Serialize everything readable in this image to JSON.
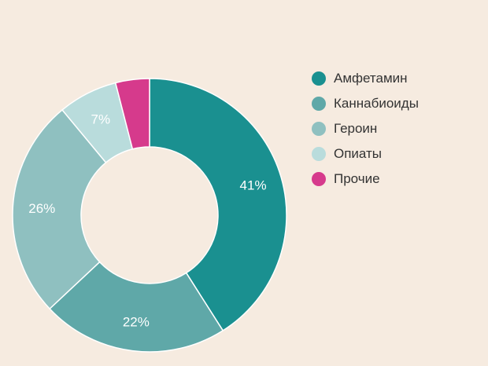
{
  "chart_data": {
    "type": "pie",
    "donut": true,
    "title": "",
    "legend_position": "right",
    "categories": [
      "Амфетамин",
      "Каннабиоиды",
      "Героин",
      "Опиаты",
      "Прочие"
    ],
    "values": [
      41,
      22,
      26,
      7,
      4
    ],
    "data_labels": [
      "41%",
      "22%",
      "26%",
      "7%",
      ""
    ],
    "colors": [
      "#1a9090",
      "#5fa8a8",
      "#8fc0c0",
      "#b9dcdc",
      "#d63a8c"
    ]
  }
}
